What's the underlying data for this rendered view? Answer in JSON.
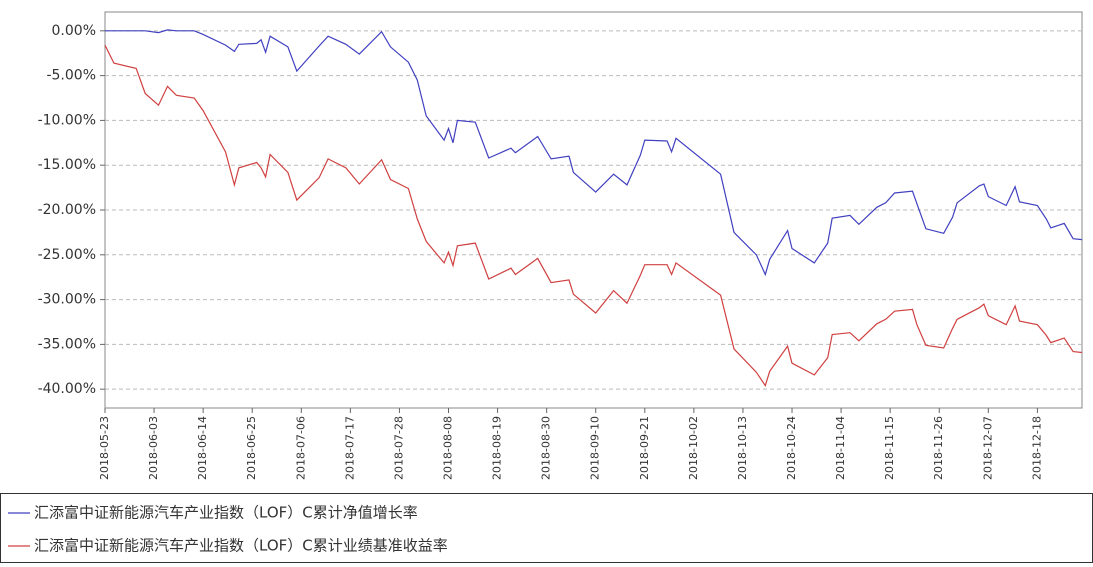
{
  "chart_data": {
    "type": "line",
    "x": [
      "2018-05-23",
      "2018-05-25",
      "2018-05-30",
      "2018-06-01",
      "2018-06-04",
      "2018-06-06",
      "2018-06-08",
      "2018-06-12",
      "2018-06-14",
      "2018-06-19",
      "2018-06-21",
      "2018-06-22",
      "2018-06-26",
      "2018-06-27",
      "2018-06-28",
      "2018-06-29",
      "2018-07-03",
      "2018-07-05",
      "2018-07-10",
      "2018-07-12",
      "2018-07-16",
      "2018-07-19",
      "2018-07-24",
      "2018-07-26",
      "2018-07-30",
      "2018-08-01",
      "2018-08-03",
      "2018-08-07",
      "2018-08-08",
      "2018-08-09",
      "2018-08-10",
      "2018-08-14",
      "2018-08-17",
      "2018-08-22",
      "2018-08-23",
      "2018-08-28",
      "2018-08-31",
      "2018-09-04",
      "2018-09-05",
      "2018-09-10",
      "2018-09-14",
      "2018-09-17",
      "2018-09-20",
      "2018-09-21",
      "2018-09-26",
      "2018-09-27",
      "2018-09-28",
      "2018-10-08",
      "2018-10-11",
      "2018-10-16",
      "2018-10-18",
      "2018-10-19",
      "2018-10-23",
      "2018-10-24",
      "2018-10-29",
      "2018-11-01",
      "2018-11-02",
      "2018-11-06",
      "2018-11-08",
      "2018-11-12",
      "2018-11-14",
      "2018-11-16",
      "2018-11-20",
      "2018-11-21",
      "2018-11-23",
      "2018-11-27",
      "2018-11-29",
      "2018-11-30",
      "2018-12-05",
      "2018-12-06",
      "2018-12-07",
      "2018-12-11",
      "2018-12-13",
      "2018-12-14",
      "2018-12-18",
      "2018-12-20",
      "2018-12-21",
      "2018-12-24",
      "2018-12-26",
      "2018-12-28"
    ],
    "series": [
      {
        "name": "汇添富中证新能源汽车产业指数（LOF）C累计净值增长率",
        "color": "#4040c0",
        "values": [
          0,
          0,
          0,
          0,
          -0.2,
          0.1,
          0,
          0,
          -0.4,
          -1.6,
          -2.3,
          -1.5,
          -1.4,
          -1.0,
          -2.4,
          -0.6,
          -1.8,
          -4.5,
          -1.7,
          -0.6,
          -1.5,
          -2.6,
          -0.1,
          -1.8,
          -3.5,
          -5.5,
          -9.5,
          -12.2,
          -10.9,
          -12.5,
          -10,
          -10.2,
          -14.2,
          -13.1,
          -13.6,
          -11.8,
          -14.3,
          -14,
          -15.8,
          -18,
          -16,
          -17.2,
          -13.9,
          -12.2,
          -12.3,
          -13.5,
          -12,
          -16,
          -22.5,
          -25,
          -27.2,
          -25.5,
          -22.3,
          -24.3,
          -25.9,
          -23.7,
          -20.9,
          -20.6,
          -21.6,
          -19.7,
          -19.2,
          -18.1,
          -17.9,
          -19.3,
          -22.1,
          -22.6,
          -20.8,
          -19.2,
          -17.3,
          -17.1,
          -18.5,
          -19.5,
          -17.4,
          -19.1,
          -19.5,
          -21,
          -22,
          -21.5,
          -23.2,
          -23.3
        ]
      },
      {
        "name": "汇添富中证新能源汽车产业指数（LOF）C累计业绩基准收益率",
        "color": "#d04040",
        "values": [
          -1.6,
          -3.6,
          -4.2,
          -7.0,
          -8.3,
          -6.2,
          -7.2,
          -7.5,
          -8.9,
          -13.5,
          -17.2,
          -15.3,
          -14.7,
          -15.3,
          -16.3,
          -13.8,
          -15.8,
          -18.9,
          -16.4,
          -14.3,
          -15.3,
          -17.1,
          -14.4,
          -16.6,
          -17.6,
          -21,
          -23.5,
          -25.9,
          -24.7,
          -26.2,
          -24,
          -23.7,
          -27.7,
          -26.5,
          -27.2,
          -25.4,
          -28.1,
          -27.8,
          -29.4,
          -31.5,
          -29,
          -30.4,
          -27.3,
          -26.1,
          -26.1,
          -27.2,
          -25.9,
          -29.5,
          -35.5,
          -38.1,
          -39.6,
          -38,
          -35.2,
          -37.1,
          -38.4,
          -36.5,
          -33.9,
          -33.7,
          -34.6,
          -32.7,
          -32.2,
          -31.3,
          -31.1,
          -32.8,
          -35.1,
          -35.4,
          -33.2,
          -32.2,
          -30.9,
          -30.5,
          -31.8,
          -32.8,
          -30.7,
          -32.4,
          -32.8,
          -34,
          -34.8,
          -34.3,
          -35.8,
          -35.9
        ]
      }
    ],
    "xlim": [
      "2018-05-23",
      "2018-12-28"
    ],
    "xticks": [
      "2018-05-23",
      "2018-06-03",
      "2018-06-14",
      "2018-06-25",
      "2018-07-06",
      "2018-07-17",
      "2018-07-28",
      "2018-08-08",
      "2018-08-19",
      "2018-08-30",
      "2018-09-10",
      "2018-09-21",
      "2018-10-02",
      "2018-10-13",
      "2018-10-24",
      "2018-11-04",
      "2018-11-15",
      "2018-11-26",
      "2018-12-07",
      "2018-12-18"
    ],
    "ylim": [
      -42.1,
      2.1
    ],
    "yticks": [
      {
        "value": 0,
        "label": "0.00%"
      },
      {
        "value": -5,
        "label": "-5.00%"
      },
      {
        "value": -10,
        "label": "-10.00%"
      },
      {
        "value": -15,
        "label": "-15.00%"
      },
      {
        "value": -20,
        "label": "-20.00%"
      },
      {
        "value": -25,
        "label": "-25.00%"
      },
      {
        "value": -30,
        "label": "-30.00%"
      },
      {
        "value": -35,
        "label": "-35.00%"
      },
      {
        "value": -40,
        "label": "-40.00%"
      }
    ],
    "grid": true
  }
}
